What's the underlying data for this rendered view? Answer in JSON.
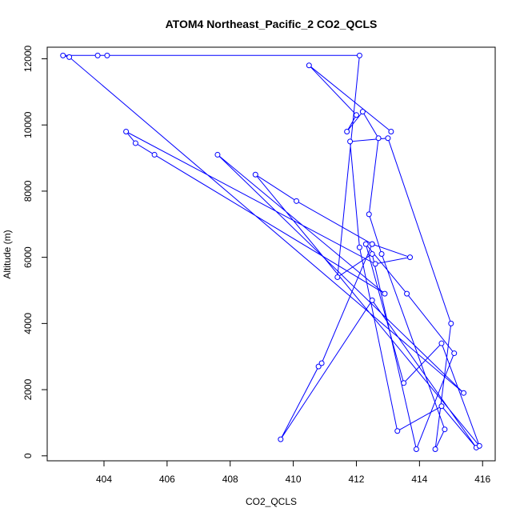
{
  "chart_data": {
    "type": "line",
    "title": "ATOM4 Northeast_Pacific_2 CO2_QCLS",
    "xlabel": "CO2_QCLS",
    "ylabel": "Altitude (m)",
    "xlim": [
      402.2,
      416.4
    ],
    "ylim": [
      -150,
      12350
    ],
    "x_ticks": [
      404,
      406,
      408,
      410,
      412,
      414,
      416
    ],
    "y_ticks": [
      0,
      2000,
      4000,
      6000,
      8000,
      10000,
      12000
    ],
    "grid": false,
    "legend": "none",
    "colors": {
      "series": "#0000ff",
      "axis": "#000000"
    },
    "series": [
      {
        "x": [
          413.1,
          410.5,
          412.0,
          411.7,
          412.2,
          412.7,
          412.4,
          412.8,
          414.8,
          414.5,
          415.0,
          413.0,
          411.8,
          412.1,
          413.3,
          414.7,
          415.8,
          412.5,
          409.6,
          410.8,
          410.9,
          412.5,
          413.7,
          412.6,
          404.7,
          405.0,
          405.6,
          412.9,
          407.6,
          415.4,
          402.9,
          402.7,
          404.1,
          403.8,
          412.1,
          411.4,
          412.5,
          413.9,
          415.1,
          413.6,
          412.3,
          413.5,
          414.7,
          415.9,
          408.8,
          410.1,
          412.5
        ],
        "y": [
          9800,
          11800,
          10300,
          9800,
          10400,
          9600,
          7300,
          6100,
          800,
          200,
          4000,
          9600,
          9500,
          6300,
          750,
          1500,
          250,
          4700,
          500,
          2700,
          2800,
          6400,
          6000,
          5800,
          9800,
          9450,
          9100,
          4900,
          9100,
          1900,
          12050,
          12100,
          12100,
          12100,
          12100,
          5400,
          6100,
          200,
          3100,
          4900,
          6400,
          2200,
          3400,
          300,
          8500,
          7700,
          6400
        ]
      }
    ]
  }
}
